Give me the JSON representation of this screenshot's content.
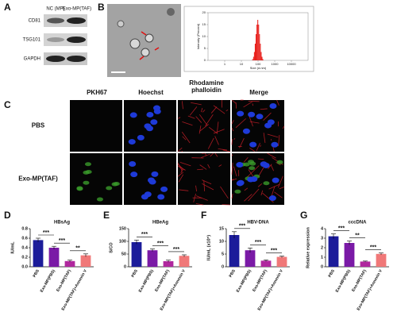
{
  "panel_labels": [
    "A",
    "B",
    "C",
    "D",
    "E",
    "F",
    "G"
  ],
  "panel_a": {
    "columns": [
      "NC (MP)",
      "Exo-MP(TAF)"
    ],
    "rows": [
      "CD81",
      "TSG101",
      "GAPDH"
    ]
  },
  "panel_c": {
    "columns": [
      "PKH67",
      "Hoechst",
      "Rhodamine phalloidin",
      "Merge"
    ],
    "rows": [
      "PBS",
      "Exo-MP(TAF)"
    ]
  },
  "chart_data": [
    {
      "type": "histogram",
      "xlabel": "Size (d.nm)",
      "ylabel": "Intensity (Percent)",
      "xscale": "log",
      "bins": [
        45,
        51,
        57,
        64,
        72,
        81,
        91,
        102,
        115,
        129,
        145,
        163,
        183,
        206
      ],
      "values": [
        0.5,
        1.5,
        3.5,
        7,
        11,
        15,
        17,
        15,
        11,
        7,
        3.5,
        1.5,
        0.5
      ],
      "color": "#e8201c",
      "xlim": [
        0.1,
        100000
      ],
      "xticks": [
        1,
        10,
        100,
        1000,
        10000
      ],
      "ylim": [
        0,
        20
      ],
      "yticks": [
        0,
        5,
        10,
        15,
        20
      ]
    },
    {
      "type": "bar",
      "title": "HBsAg",
      "ylabel": "IU/mL",
      "categories": [
        "PBS",
        "Exo-MP(PBS)",
        "Exo-MP(TAF)",
        "Exo-MP(TAF)+Annexin V"
      ],
      "values": [
        0.56,
        0.4,
        0.12,
        0.24
      ],
      "errors": [
        0.04,
        0.03,
        0.02,
        0.03
      ],
      "colors": [
        "#1c1c9a",
        "#7a1aa6",
        "#b0289e",
        "#f07878"
      ],
      "ylim": [
        0,
        0.8
      ],
      "yticks": [
        {
          "value": 0,
          "label": "0.0"
        },
        {
          "value": 0.2,
          "label": "0.2"
        },
        {
          "value": 0.4,
          "label": "0.4"
        },
        {
          "value": 0.6,
          "label": "0.6"
        },
        {
          "value": 0.8,
          "label": "0.8"
        }
      ],
      "annotations": [
        "***",
        "***",
        "**"
      ]
    },
    {
      "type": "bar",
      "title": "HBeAg",
      "ylabel": "S/CO",
      "categories": [
        "PBS",
        "Exo-MP(PBS)",
        "Exo-MP(TAF)",
        "Exo-MP(TAF)+Annexin V"
      ],
      "values": [
        97,
        65,
        22,
        43
      ],
      "errors": [
        8,
        5,
        4,
        4
      ],
      "colors": [
        "#1c1c9a",
        "#7a1aa6",
        "#b0289e",
        "#f07878"
      ],
      "ylim": [
        0,
        150
      ],
      "yticks": [
        0,
        50,
        100,
        150
      ],
      "annotations": [
        "***",
        "***",
        "***"
      ]
    },
    {
      "type": "bar",
      "title": "HBV-DNA",
      "ylabel": "IU/mL (x10⁵)",
      "categories": [
        "PBS",
        "Exo-MP(PBS)",
        "Exo-MP(TAF)",
        "Exo-MP(TAF)+Annexin V"
      ],
      "values": [
        12.5,
        6.5,
        2.4,
        3.9
      ],
      "errors": [
        1.3,
        0.9,
        0.3,
        0.3
      ],
      "colors": [
        "#1c1c9a",
        "#7a1aa6",
        "#b0289e",
        "#f07878"
      ],
      "ylim": [
        0,
        15
      ],
      "yticks": [
        0,
        5,
        10,
        15
      ],
      "annotations": [
        "***",
        "***",
        "***"
      ]
    },
    {
      "type": "bar",
      "title": "cccDNA",
      "ylabel": "Relative expression",
      "categories": [
        "PBS",
        "Exo-MP(PBS)",
        "Exo-MP(TAF)",
        "Exo-MP(TAF)+Annexin V"
      ],
      "values": [
        3.2,
        2.5,
        0.55,
        1.35
      ],
      "errors": [
        0.25,
        0.2,
        0.05,
        0.1
      ],
      "colors": [
        "#1c1c9a",
        "#7a1aa6",
        "#b0289e",
        "#f07878"
      ],
      "ylim": [
        0,
        4
      ],
      "yticks": [
        0,
        1,
        2,
        3,
        4
      ],
      "annotations": [
        "***",
        "**",
        "***"
      ]
    }
  ]
}
